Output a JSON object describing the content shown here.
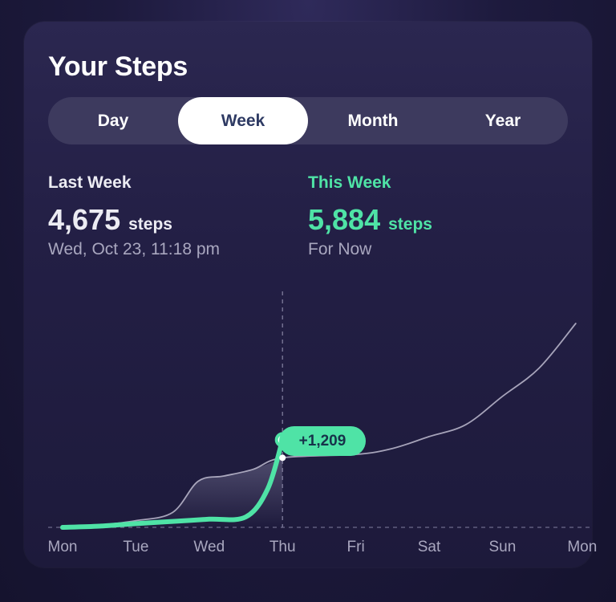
{
  "title": "Your Steps",
  "tabs": [
    {
      "label": "Day",
      "active": false
    },
    {
      "label": "Week",
      "active": true
    },
    {
      "label": "Month",
      "active": false
    },
    {
      "label": "Year",
      "active": false
    }
  ],
  "last_week": {
    "label": "Last Week",
    "value": "4,675",
    "unit": "steps",
    "sub": "Wed, Oct 23, 11:18 pm"
  },
  "this_week": {
    "label": "This Week",
    "value": "5,884",
    "unit": "steps",
    "sub": "For Now"
  },
  "colors": {
    "accent": "#4fe3a6",
    "background": "#1d1a3d",
    "card": "#2b2750",
    "segment": "#3d3a5e",
    "muted_text": "#a9a7bf"
  },
  "chart_data": {
    "type": "line",
    "x_labels": [
      "Mon",
      "Tue",
      "Wed",
      "Thu",
      "Fri",
      "Sat",
      "Sun",
      "Mon"
    ],
    "difference_label": "+1,209",
    "series": [
      {
        "name": "This Week",
        "color": "#4fe3a6",
        "points": [
          [
            0,
            0
          ],
          [
            0.5,
            80
          ],
          [
            1.0,
            250
          ],
          [
            1.5,
            400
          ],
          [
            2.0,
            550
          ],
          [
            2.5,
            700
          ],
          [
            2.8,
            2600
          ],
          [
            3.0,
            5884
          ]
        ]
      },
      {
        "name": "Last Week",
        "color": "#c8c6d8",
        "points": [
          [
            0,
            0
          ],
          [
            0.5,
            150
          ],
          [
            1.0,
            450
          ],
          [
            1.5,
            1000
          ],
          [
            1.85,
            3100
          ],
          [
            2.2,
            3450
          ],
          [
            2.6,
            3900
          ],
          [
            3.0,
            4675
          ],
          [
            4.0,
            4900
          ],
          [
            4.5,
            5300
          ],
          [
            5.0,
            6100
          ],
          [
            5.5,
            6900
          ],
          [
            6.0,
            8800
          ],
          [
            6.5,
            10700
          ],
          [
            7.0,
            13700
          ]
        ]
      }
    ],
    "current_marker": {
      "x": 3.0,
      "label": "+1,209"
    },
    "ylim": [
      0,
      13700
    ],
    "grid": false,
    "baseline_dashed": true
  }
}
